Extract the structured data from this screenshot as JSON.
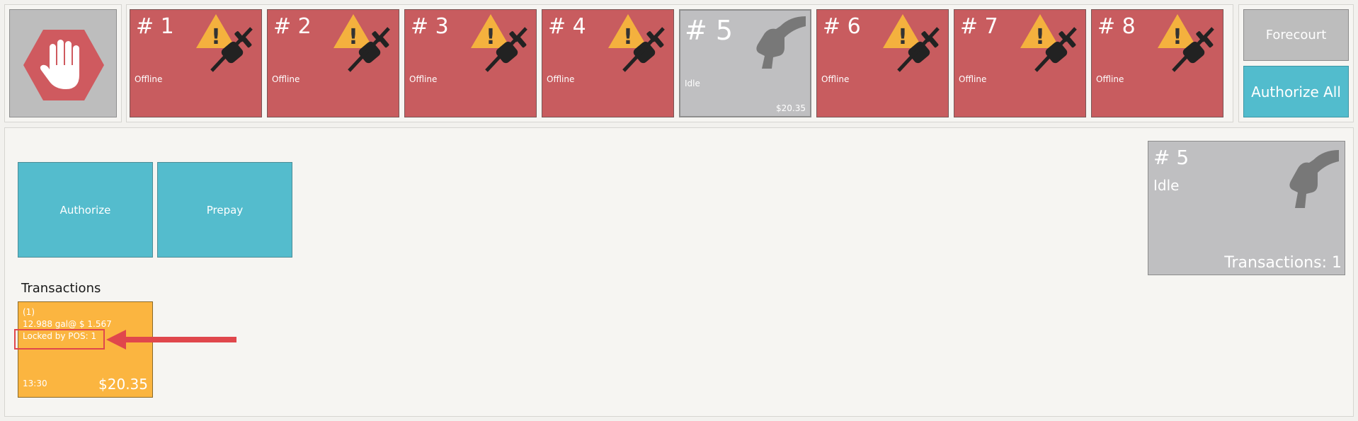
{
  "pumps": [
    {
      "number": "# 1",
      "status": "Offline",
      "amount": ""
    },
    {
      "number": "# 2",
      "status": "Offline",
      "amount": ""
    },
    {
      "number": "# 3",
      "status": "Offline",
      "amount": ""
    },
    {
      "number": "# 4",
      "status": "Offline",
      "amount": ""
    },
    {
      "number": "# 5",
      "status": "Idle",
      "amount": "$20.35"
    },
    {
      "number": "# 6",
      "status": "Offline",
      "amount": ""
    },
    {
      "number": "# 7",
      "status": "Offline",
      "amount": ""
    },
    {
      "number": "# 8",
      "status": "Offline",
      "amount": ""
    }
  ],
  "side": {
    "forecourt": "Forecourt",
    "authorize_all": "Authorize All"
  },
  "actions": {
    "authorize": "Authorize",
    "prepay": "Prepay"
  },
  "transactions": {
    "label": "Transactions",
    "item": {
      "index": "(1)",
      "volume": "12.988 gal@ $ 1.567",
      "lock": "Locked by POS: 1",
      "time": "13:30",
      "amount": "$20.35"
    }
  },
  "detail": {
    "number": "# 5",
    "status": "Idle",
    "transactions": "Transactions: 1"
  },
  "colors": {
    "offline": "#c85c5f",
    "idle": "#bfbfc1",
    "accent": "#54bccd",
    "transaction": "#fbb540",
    "highlight": "#e0474c"
  }
}
